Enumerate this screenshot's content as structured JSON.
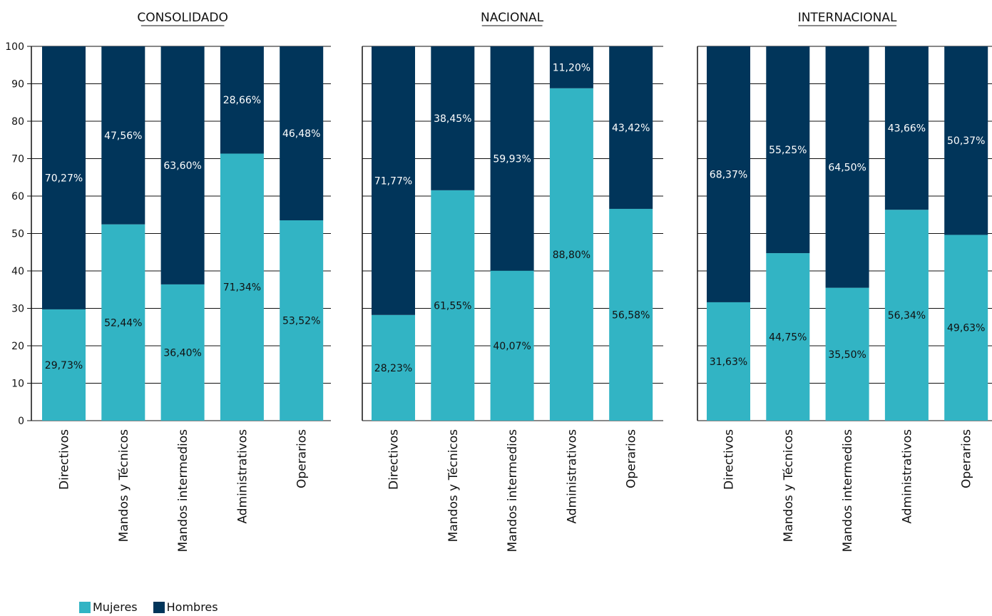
{
  "colors": {
    "mujeres": "#32b4c4",
    "hombres": "#01355a",
    "axis": "#111111",
    "grid": "#111111"
  },
  "legend": {
    "mujeres": "Mujeres",
    "hombres": "Hombres"
  },
  "chart_data": [
    {
      "type": "bar",
      "stacked": true,
      "title": "CONSOLIDADO",
      "categories": [
        "Directivos",
        "Mandos y Técnicos",
        "Mandos intermedios",
        "Administrativos",
        "Operarios"
      ],
      "series": [
        {
          "name": "Mujeres",
          "values": [
            29.73,
            52.44,
            36.4,
            71.34,
            53.52
          ],
          "labels": [
            "29,73%",
            "52,44%",
            "36,40%",
            "71,34%",
            "53,52%"
          ]
        },
        {
          "name": "Hombres",
          "values": [
            70.27,
            47.56,
            63.6,
            28.66,
            46.48
          ],
          "labels": [
            "70,27%",
            "47,56%",
            "63,60%",
            "28,66%",
            "46,48%"
          ]
        }
      ],
      "ylim": [
        0,
        100
      ],
      "yticks": [
        "0",
        "10",
        "20",
        "30",
        "40",
        "50",
        "60",
        "70",
        "80",
        "90",
        "100"
      ],
      "grid": true
    },
    {
      "type": "bar",
      "stacked": true,
      "title": "NACIONAL",
      "categories": [
        "Directivos",
        "Mandos y Técnicos",
        "Mandos intermedios",
        "Administrativos",
        "Operarios"
      ],
      "series": [
        {
          "name": "Mujeres",
          "values": [
            28.23,
            61.55,
            40.07,
            88.8,
            56.58
          ],
          "labels": [
            "28,23%",
            "61,55%",
            "40,07%",
            "88,80%",
            "56,58%"
          ]
        },
        {
          "name": "Hombres",
          "values": [
            71.77,
            38.45,
            59.93,
            11.2,
            43.42
          ],
          "labels": [
            "71,77%",
            "38,45%",
            "59,93%",
            "11,20%",
            "43,42%"
          ]
        }
      ],
      "ylim": [
        0,
        100
      ],
      "grid": true
    },
    {
      "type": "bar",
      "stacked": true,
      "title": "INTERNACIONAL",
      "categories": [
        "Directivos",
        "Mandos y Técnicos",
        "Mandos intermedios",
        "Administrativos",
        "Operarios"
      ],
      "series": [
        {
          "name": "Mujeres",
          "values": [
            31.63,
            44.75,
            35.5,
            56.34,
            49.63
          ],
          "labels": [
            "31,63%",
            "44,75%",
            "35,50%",
            "56,34%",
            "49,63%"
          ]
        },
        {
          "name": "Hombres",
          "values": [
            68.37,
            55.25,
            64.5,
            43.66,
            50.37
          ],
          "labels": [
            "68,37%",
            "55,25%",
            "64,50%",
            "43,66%",
            "50,37%"
          ]
        }
      ],
      "ylim": [
        0,
        100
      ],
      "grid": true
    }
  ]
}
